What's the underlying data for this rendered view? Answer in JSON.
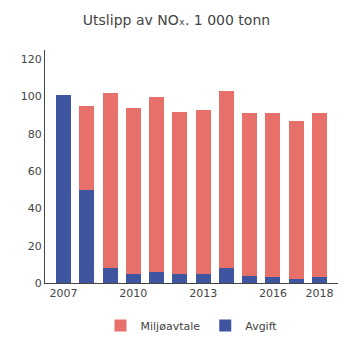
{
  "chart_data": {
    "type": "bar",
    "title": "Utslipp av NOₓ. 1 000 tonn",
    "stacked": true,
    "x": [
      2007,
      2008,
      2009,
      2010,
      2011,
      2012,
      2013,
      2014,
      2015,
      2016,
      2017,
      2018
    ],
    "series": [
      {
        "name": "Avgift",
        "color": "#4055a0",
        "values": [
          101,
          50,
          8,
          5,
          6,
          5,
          5,
          8,
          4,
          3,
          2,
          3
        ]
      },
      {
        "name": "Miljøavtale",
        "color": "#e8706a",
        "values": [
          0,
          45,
          94,
          89,
          94,
          87,
          88,
          95,
          87,
          88,
          85,
          88
        ]
      }
    ],
    "xlim": [
      2006.2,
      2018.8
    ],
    "xticks": [
      2007,
      2010,
      2013,
      2016,
      2018
    ],
    "ylim": [
      0,
      125
    ],
    "yticks": [
      0,
      20,
      40,
      60,
      80,
      100,
      120
    ],
    "grid": false,
    "legend": "bottom"
  }
}
